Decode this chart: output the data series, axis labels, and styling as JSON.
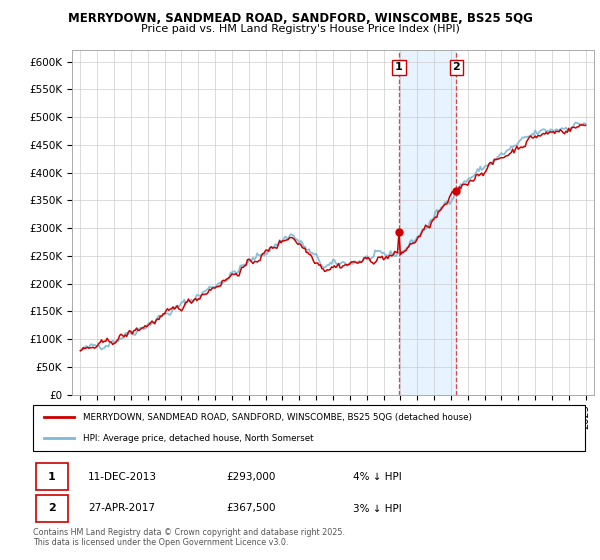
{
  "title1": "MERRYDOWN, SANDMEAD ROAD, SANDFORD, WINSCOMBE, BS25 5QG",
  "title2": "Price paid vs. HM Land Registry's House Price Index (HPI)",
  "ylabel_ticks": [
    "£0",
    "£50K",
    "£100K",
    "£150K",
    "£200K",
    "£250K",
    "£300K",
    "£350K",
    "£400K",
    "£450K",
    "£500K",
    "£550K",
    "£600K"
  ],
  "ytick_values": [
    0,
    50000,
    100000,
    150000,
    200000,
    250000,
    300000,
    350000,
    400000,
    450000,
    500000,
    550000,
    600000
  ],
  "ylim": [
    0,
    620000
  ],
  "hpi_color": "#7EB8D4",
  "price_color": "#CC0000",
  "shade_color": "#ddeeff",
  "dashed_color": "#DD4444",
  "transaction1": {
    "date": "11-DEC-2013",
    "price": 293000,
    "pct": "4% ↓ HPI",
    "label": "1"
  },
  "transaction2": {
    "date": "27-APR-2017",
    "price": 367500,
    "pct": "3% ↓ HPI",
    "label": "2"
  },
  "legend_line1": "MERRYDOWN, SANDMEAD ROAD, SANDFORD, WINSCOMBE, BS25 5QG (detached house)",
  "legend_line2": "HPI: Average price, detached house, North Somerset",
  "footer": "Contains HM Land Registry data © Crown copyright and database right 2025.\nThis data is licensed under the Open Government Licence v3.0.",
  "transaction1_x": 2013.92,
  "transaction2_x": 2017.33,
  "background_color": "#ffffff",
  "grid_color": "#cccccc"
}
